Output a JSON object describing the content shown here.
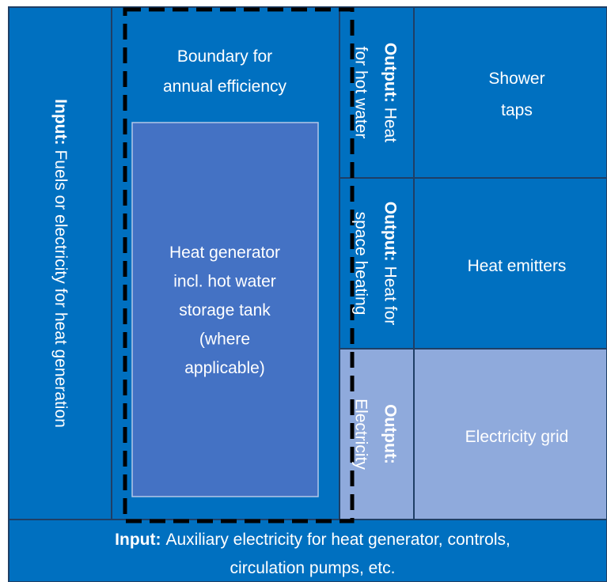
{
  "cells": {
    "input_fuels": {
      "lines": [
        [
          {
            "text": "Input:",
            "bold": true
          },
          {
            "text": "Fuels or electricity for heat generation"
          }
        ]
      ]
    },
    "boundary": {
      "lines": [
        [
          {
            "text": "Boundary for"
          }
        ],
        [
          {
            "text": "annual efficiency"
          }
        ]
      ]
    },
    "heat_generator": {
      "lines": [
        [
          {
            "text": "Heat generator"
          }
        ],
        [
          {
            "text": "incl. hot water"
          }
        ],
        [
          {
            "text": "storage tank"
          }
        ],
        [
          {
            "text": "(where"
          }
        ],
        [
          {
            "text": "applicable)"
          }
        ]
      ]
    },
    "output_hot_water": {
      "lines": [
        [
          {
            "text": "Output:",
            "bold": true
          },
          {
            "text": "Heat"
          }
        ],
        [
          {
            "text": "for hot water"
          }
        ]
      ]
    },
    "output_space_heating": {
      "lines": [
        [
          {
            "text": "Output:",
            "bold": true
          },
          {
            "text": "Heat for"
          }
        ],
        [
          {
            "text": "space heating"
          }
        ]
      ]
    },
    "output_electricity": {
      "lines": [
        [
          {
            "text": "Output:",
            "bold": true
          }
        ],
        [
          {
            "text": "Electricity"
          }
        ]
      ]
    },
    "shower_taps": {
      "lines": [
        [
          {
            "text": "Shower"
          }
        ],
        [
          {
            "text": "taps"
          }
        ]
      ]
    },
    "heat_emitters": {
      "lines": [
        [
          {
            "text": "Heat emitters"
          }
        ]
      ]
    },
    "electricity_grid": {
      "lines": [
        [
          {
            "text": "Electricity grid"
          }
        ]
      ]
    },
    "input_auxiliary": {
      "lines": [
        [
          {
            "text": "Input:",
            "bold": true
          },
          {
            "text": "Auxiliary electricity for heat generator, controls,"
          }
        ],
        [
          {
            "text": "circulation pumps, etc."
          }
        ]
      ]
    }
  }
}
